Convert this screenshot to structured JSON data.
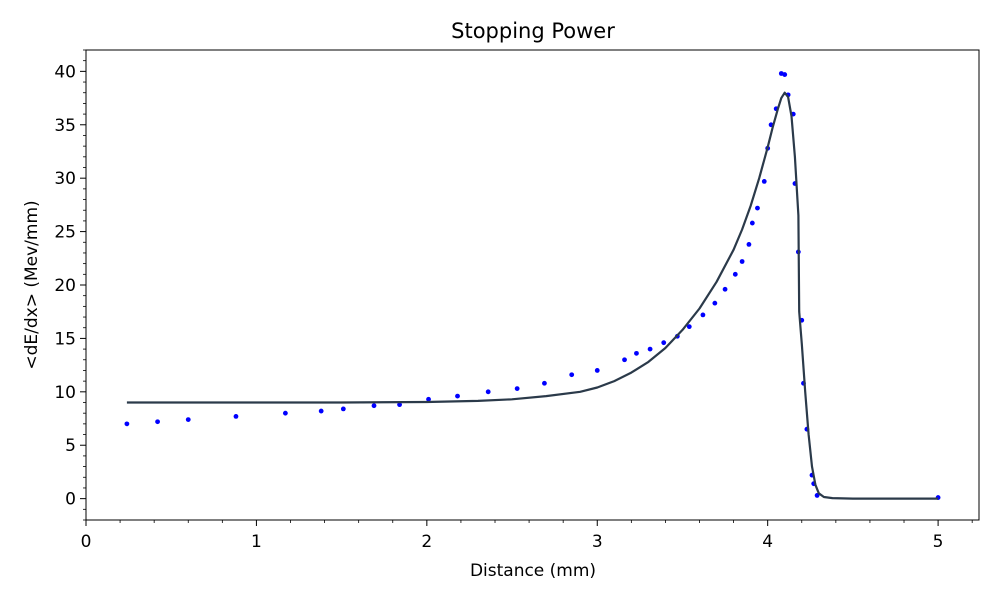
{
  "chart_data": {
    "type": "scatter",
    "title": "Stopping Power",
    "xlabel": "Distance (mm)",
    "ylabel": "<dE/dx> (Mev/mm)",
    "xlim": [
      0,
      5.24
    ],
    "ylim": [
      -2,
      42
    ],
    "x_ticks": [
      0,
      1,
      2,
      3,
      4,
      5
    ],
    "x_tick_labels": [
      "0",
      "1",
      "2",
      "3",
      "4",
      "5"
    ],
    "y_ticks": [
      0,
      5,
      10,
      15,
      20,
      25,
      30,
      35,
      40
    ],
    "y_tick_labels": [
      "0",
      "5",
      "10",
      "15",
      "20",
      "25",
      "30",
      "35",
      "40"
    ],
    "grid": false,
    "series": [
      {
        "kind": "points",
        "color": "#0000ff",
        "x": [
          0.24,
          0.42,
          0.6,
          0.88,
          1.17,
          1.38,
          1.51,
          1.69,
          1.84,
          2.01,
          2.18,
          2.36,
          2.53,
          2.69,
          2.85,
          3.0,
          3.16,
          3.23,
          3.31,
          3.39,
          3.47,
          3.54,
          3.62,
          3.69,
          3.75,
          3.81,
          3.85,
          3.89,
          3.91,
          3.94,
          3.98,
          4.0,
          4.02,
          4.05,
          4.08,
          4.1,
          4.12,
          4.15,
          4.16,
          4.18,
          4.2,
          4.21,
          4.23,
          4.26,
          4.27,
          4.29,
          5.0
        ],
        "y": [
          7.0,
          7.2,
          7.4,
          7.7,
          8.0,
          8.2,
          8.4,
          8.7,
          8.8,
          9.3,
          9.6,
          10.0,
          10.3,
          10.8,
          11.6,
          12.0,
          13.0,
          13.6,
          14.0,
          14.6,
          15.2,
          16.1,
          17.2,
          18.3,
          19.6,
          21.0,
          22.2,
          23.8,
          25.8,
          27.2,
          29.7,
          32.8,
          35.0,
          36.5,
          39.8,
          39.7,
          37.8,
          36.0,
          29.5,
          23.1,
          16.7,
          10.8,
          6.5,
          2.2,
          1.4,
          0.3,
          0.1
        ]
      },
      {
        "kind": "line",
        "color": "#2b3a4a",
        "x": [
          0.24,
          0.5,
          1.0,
          1.5,
          2.0,
          2.3,
          2.5,
          2.7,
          2.9,
          3.0,
          3.1,
          3.2,
          3.3,
          3.4,
          3.5,
          3.6,
          3.7,
          3.8,
          3.85,
          3.9,
          3.95,
          4.0,
          4.03,
          4.06,
          4.08,
          4.1,
          4.12,
          4.14,
          4.16,
          4.18,
          4.185,
          4.2,
          4.22,
          4.24,
          4.26,
          4.28,
          4.3,
          4.33,
          4.38,
          4.5,
          5.0
        ],
        "y": [
          9.0,
          9.0,
          9.0,
          9.0,
          9.05,
          9.15,
          9.3,
          9.6,
          10.0,
          10.4,
          11.0,
          11.8,
          12.8,
          14.1,
          15.8,
          17.8,
          20.3,
          23.3,
          25.2,
          27.4,
          30.0,
          32.9,
          34.8,
          36.5,
          37.5,
          38.0,
          37.6,
          35.8,
          32.0,
          26.5,
          17.5,
          14.5,
          10.0,
          6.0,
          3.0,
          1.3,
          0.5,
          0.15,
          0.05,
          0.0,
          0.0
        ]
      }
    ]
  }
}
